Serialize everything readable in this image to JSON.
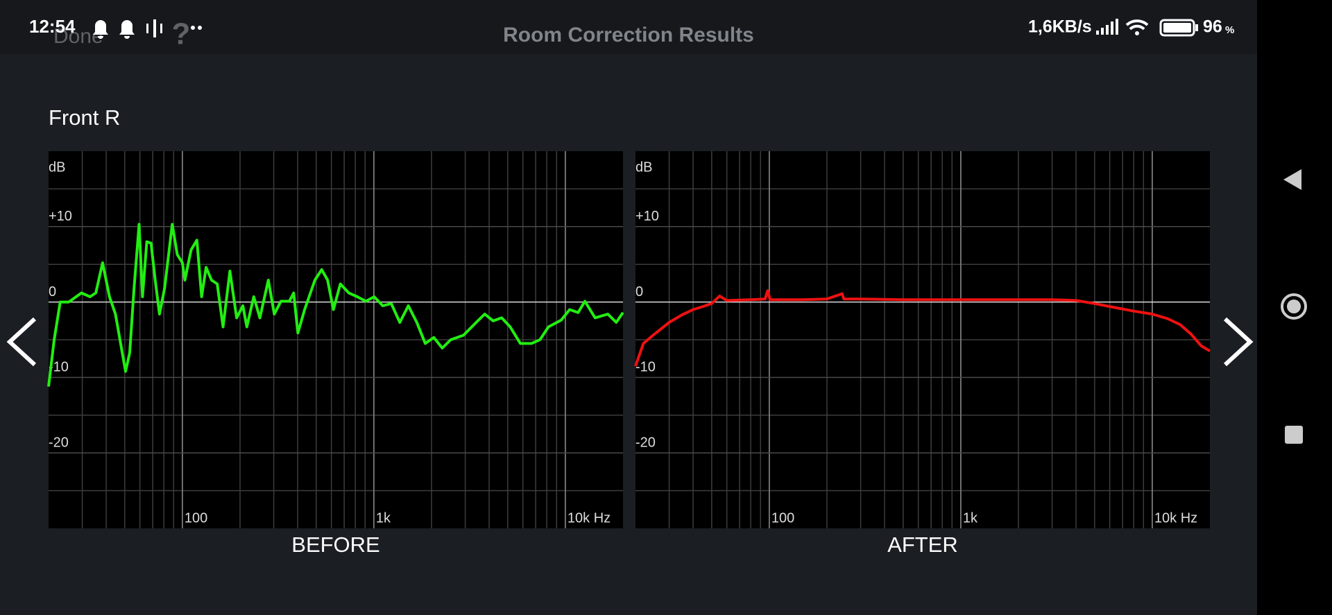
{
  "status_bar": {
    "time": "12:54",
    "speed": "1,6KB/s",
    "battery": "96",
    "battery_unit": "%"
  },
  "header": {
    "back_button": "Done",
    "title": "Room Correction Results"
  },
  "channel": "Front R",
  "chart_data": [
    {
      "type": "line",
      "title": "BEFORE",
      "y_label": "dB",
      "color": "#22ee11",
      "xscale": "log",
      "grid": true,
      "xlim": [
        20,
        20000
      ],
      "ylim": [
        -30,
        20
      ],
      "xticks": [
        {
          "value": 100,
          "label": "100"
        },
        {
          "value": 1000,
          "label": "1k"
        },
        {
          "value": 10000,
          "label": "10k Hz"
        }
      ],
      "yticks": [
        {
          "value": 10,
          "label": "+10"
        },
        0,
        -10,
        -20
      ],
      "minor_yticks": [
        15,
        5,
        -5,
        -15,
        -25
      ],
      "x": [
        20,
        21.4,
        23,
        25.5,
        29.7,
        32.9,
        35.3,
        38.3,
        41.6,
        44.7,
        50.5,
        53.1,
        55.9,
        59.4,
        61.9,
        65.2,
        68.6,
        72.1,
        75.9,
        80.7,
        88.5,
        94,
        100,
        103,
        111,
        119,
        126,
        133,
        142,
        152,
        163,
        177,
        192,
        207,
        217,
        236,
        254,
        281,
        302,
        327,
        362,
        381,
        401,
        435,
        492,
        534,
        573,
        615,
        668,
        740,
        820,
        908,
        1004,
        1113,
        1233,
        1366,
        1513,
        1676,
        1856,
        2055,
        2276,
        2520,
        2937,
        3423,
        3793,
        4200,
        4652,
        5152,
        5825,
        6650,
        7365,
        8155,
        9510,
        10530,
        11660,
        12650,
        14300,
        16670,
        18450,
        20000
      ],
      "values": [
        -11.2,
        -5,
        0,
        0,
        1.2,
        0.7,
        1.2,
        5.2,
        0.7,
        -1.6,
        -9.2,
        -6.7,
        1.8,
        10.3,
        0.7,
        8,
        7.8,
        2.9,
        -1.6,
        1.8,
        10.3,
        6.3,
        5.2,
        2.9,
        6.9,
        8.2,
        0.7,
        4.6,
        2.9,
        2.4,
        -3.3,
        4.1,
        -2.1,
        -0.5,
        -3.3,
        0.7,
        -2.1,
        2.9,
        -1.6,
        0.1,
        0.1,
        1.2,
        -4.1,
        -1,
        2.9,
        4.3,
        2.9,
        -1,
        2.4,
        1.2,
        0.7,
        0.1,
        0.7,
        -0.5,
        -0.2,
        -2.7,
        -0.5,
        -2.7,
        -5.5,
        -4.7,
        -6.1,
        -5,
        -4.4,
        -2.7,
        -1.6,
        -2.5,
        -2.1,
        -3.3,
        -5.5,
        -5.5,
        -5,
        -3.3,
        -2.4,
        -1,
        -1.4,
        0.1,
        -2.1,
        -1.6,
        -2.7,
        -1.4
      ]
    },
    {
      "type": "line",
      "title": "AFTER",
      "y_label": "dB",
      "color": "#ee1111",
      "xscale": "log",
      "grid": true,
      "xlim": [
        20,
        20000
      ],
      "ylim": [
        -30,
        20
      ],
      "xticks": [
        {
          "value": 100,
          "label": "100"
        },
        {
          "value": 1000,
          "label": "1k"
        },
        {
          "value": 10000,
          "label": "10k Hz"
        }
      ],
      "yticks": [
        {
          "value": 10,
          "label": "+10"
        },
        0,
        -10,
        -20
      ],
      "minor_yticks": [
        15,
        5,
        -5,
        -15,
        -25
      ],
      "x": [
        20,
        22,
        25,
        30,
        35,
        40,
        45,
        50,
        55,
        60,
        80,
        95,
        98,
        101,
        150,
        200,
        240,
        245,
        300,
        500,
        1000,
        2000,
        3000,
        4000,
        5000,
        6000,
        8000,
        10000,
        12000,
        14000,
        16000,
        18000,
        20000
      ],
      "values": [
        -8.5,
        -5.5,
        -4.3,
        -2.7,
        -1.7,
        -1,
        -0.6,
        -0.2,
        0.8,
        0.2,
        0.3,
        0.4,
        1.5,
        0.3,
        0.3,
        0.4,
        1.1,
        0.4,
        0.4,
        0.3,
        0.3,
        0.3,
        0.3,
        0.2,
        -0.2,
        -0.6,
        -1.2,
        -1.6,
        -2.2,
        -3,
        -4.3,
        -5.8,
        -6.5
      ]
    }
  ]
}
